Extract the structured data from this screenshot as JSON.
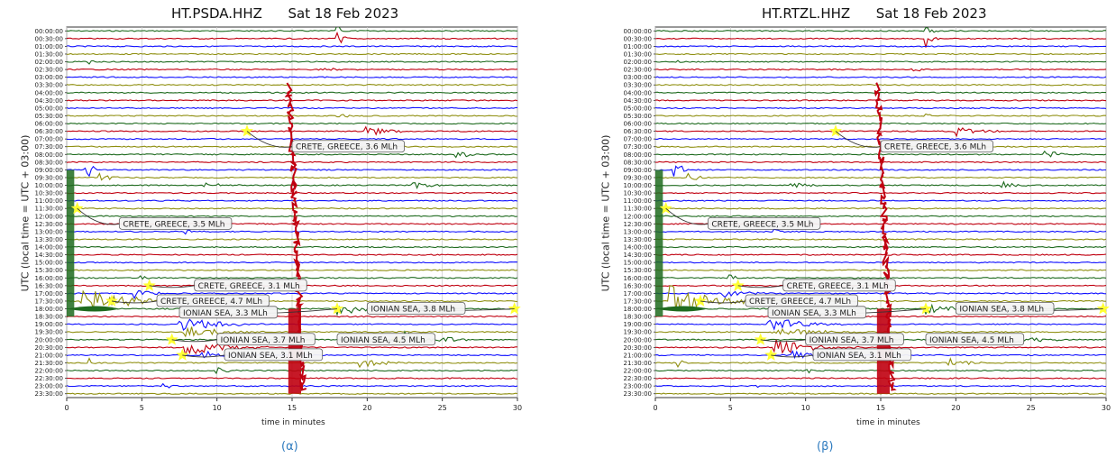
{
  "colors": [
    "#1f7a1f",
    "#00a000",
    "#c0000f",
    "#0000ff",
    "#8b8b00"
  ],
  "chart_data": [
    {
      "type": "line",
      "title": "HT.PSDA.HHZ      Sat 18 Feb 2023",
      "xlabel": "time in minutes",
      "ylabel": "UTC (local time = UTC + 03:00)",
      "xlim": [
        0,
        30
      ],
      "x_ticks": [
        "0",
        "5",
        "10",
        "15",
        "20",
        "25",
        "30"
      ],
      "y_ticks": [
        "00:00:00",
        "00:30:00",
        "01:00:00",
        "01:30:00",
        "02:00:00",
        "02:30:00",
        "03:00:00",
        "03:30:00",
        "04:00:00",
        "04:30:00",
        "05:00:00",
        "05:30:00",
        "06:00:00",
        "06:30:00",
        "07:00:00",
        "07:30:00",
        "08:00:00",
        "08:30:00",
        "09:00:00",
        "09:30:00",
        "10:00:00",
        "10:30:00",
        "11:00:00",
        "11:30:00",
        "12:00:00",
        "12:30:00",
        "13:00:00",
        "13:30:00",
        "14:00:00",
        "14:30:00",
        "15:00:00",
        "15:30:00",
        "16:00:00",
        "16:30:00",
        "17:00:00",
        "17:30:00",
        "18:00:00",
        "18:30:00",
        "19:00:00",
        "19:30:00",
        "20:00:00",
        "20:30:00",
        "21:00:00",
        "21:30:00",
        "22:00:00",
        "22:30:00",
        "23:00:00",
        "23:30:00"
      ],
      "events": [
        {
          "label": "CRETE, GREECE, 3.6 MLh",
          "x": 12.0,
          "row": 13
        },
        {
          "label": "CRETE, GREECE, 3.5 MLh",
          "x": 0.7,
          "row": 23
        },
        {
          "label": "CRETE, GREECE, 3.1 MLh",
          "x": 5.5,
          "row": 33
        },
        {
          "label": "CRETE, GREECE, 4.7 MLh",
          "x": 3.0,
          "row": 35
        },
        {
          "label": "IONIAN SEA, 3.3 MLh",
          "x": 18.0,
          "row": 36
        },
        {
          "label": "IONIAN SEA, 3.8 MLh",
          "x": 29.8,
          "row": 36
        },
        {
          "label": "IONIAN SEA, 3.7 MLh",
          "x": 7.0,
          "row": 40
        },
        {
          "label": "IONIAN SEA, 4.5 MLh",
          "x": 22.0,
          "row": 40
        },
        {
          "label": "IONIAN SEA, 3.1 MLh",
          "x": 7.7,
          "row": 42
        }
      ]
    },
    {
      "type": "line",
      "title": "HT.RTZL.HHZ      Sat 18 Feb 2023",
      "xlabel": "time in minutes",
      "ylabel": "UTC (local time = UTC + 03:00)",
      "xlim": [
        0,
        30
      ],
      "x_ticks": [
        "0",
        "5",
        "10",
        "15",
        "20",
        "25",
        "30"
      ],
      "y_ticks": [
        "00:00:00",
        "00:30:00",
        "01:00:00",
        "01:30:00",
        "02:00:00",
        "02:30:00",
        "03:00:00",
        "03:30:00",
        "04:00:00",
        "04:30:00",
        "05:00:00",
        "05:30:00",
        "06:00:00",
        "06:30:00",
        "07:00:00",
        "07:30:00",
        "08:00:00",
        "08:30:00",
        "09:00:00",
        "09:30:00",
        "10:00:00",
        "10:30:00",
        "11:00:00",
        "11:30:00",
        "12:00:00",
        "12:30:00",
        "13:00:00",
        "13:30:00",
        "14:00:00",
        "14:30:00",
        "15:00:00",
        "15:30:00",
        "16:00:00",
        "16:30:00",
        "17:00:00",
        "17:30:00",
        "18:00:00",
        "18:30:00",
        "19:00:00",
        "19:30:00",
        "20:00:00",
        "20:30:00",
        "21:00:00",
        "21:30:00",
        "22:00:00",
        "22:30:00",
        "23:00:00",
        "23:30:00"
      ],
      "events": [
        {
          "label": "CRETE, GREECE, 3.6 MLh",
          "x": 12.0,
          "row": 13
        },
        {
          "label": "CRETE, GREECE, 3.5 MLh",
          "x": 0.7,
          "row": 23
        },
        {
          "label": "CRETE, GREECE, 3.1 MLh",
          "x": 5.5,
          "row": 33
        },
        {
          "label": "CRETE, GREECE, 4.7 MLh",
          "x": 3.0,
          "row": 35
        },
        {
          "label": "IONIAN SEA, 3.3 MLh",
          "x": 18.0,
          "row": 36
        },
        {
          "label": "IONIAN SEA, 3.8 MLh",
          "x": 29.8,
          "row": 36
        },
        {
          "label": "IONIAN SEA, 3.7 MLh",
          "x": 7.0,
          "row": 40
        },
        {
          "label": "IONIAN SEA, 4.5 MLh",
          "x": 22.0,
          "row": 40
        },
        {
          "label": "IONIAN SEA, 3.1 MLh",
          "x": 7.7,
          "row": 42
        }
      ]
    }
  ],
  "captions": [
    "(α)",
    "(β)"
  ]
}
